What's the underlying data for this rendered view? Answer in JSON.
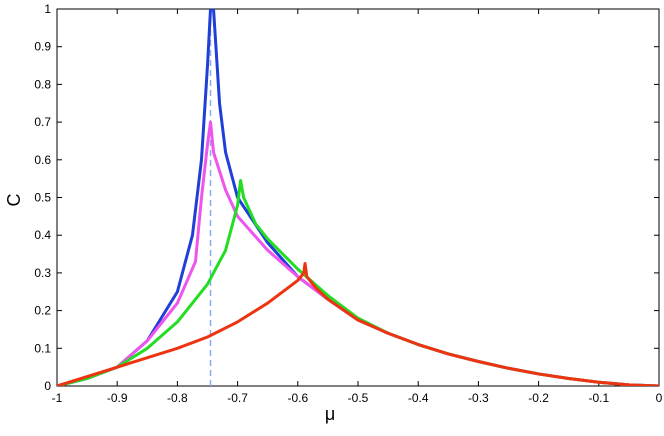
{
  "chart_data": {
    "type": "line",
    "xlabel": "μ",
    "ylabel": "C",
    "xlim": [
      -1,
      0
    ],
    "ylim": [
      0,
      1
    ],
    "xticks": [
      -1,
      -0.9,
      -0.8,
      -0.7,
      -0.6,
      -0.5,
      -0.4,
      -0.3,
      -0.2,
      -0.1,
      0
    ],
    "yticks": [
      0,
      0.1,
      0.2,
      0.3,
      0.4,
      0.5,
      0.6,
      0.7,
      0.8,
      0.9,
      1
    ],
    "series": [
      {
        "color": "#1f3fd8",
        "x": [
          -1,
          -0.95,
          -0.9,
          -0.85,
          -0.8,
          -0.775,
          -0.76,
          -0.75,
          -0.745,
          -0.74,
          -0.73,
          -0.72,
          -0.7,
          -0.65,
          -0.6,
          -0.55,
          -0.5,
          -0.45,
          -0.4,
          -0.35,
          -0.3,
          -0.25,
          -0.2,
          -0.15,
          -0.1,
          -0.05,
          0
        ],
        "values": [
          0,
          0.02,
          0.05,
          0.12,
          0.25,
          0.4,
          0.6,
          0.85,
          1,
          1,
          0.75,
          0.62,
          0.5,
          0.38,
          0.29,
          0.23,
          0.175,
          0.14,
          0.11,
          0.085,
          0.065,
          0.047,
          0.032,
          0.02,
          0.01,
          0.003,
          0
        ]
      },
      {
        "color": "#ee55ee",
        "x": [
          -1,
          -0.95,
          -0.9,
          -0.85,
          -0.8,
          -0.77,
          -0.76,
          -0.75,
          -0.745,
          -0.74,
          -0.72,
          -0.7,
          -0.65,
          -0.6,
          -0.55,
          -0.5,
          -0.45,
          -0.4,
          -0.35,
          -0.3,
          -0.25,
          -0.2,
          -0.15,
          -0.1,
          -0.05,
          0
        ],
        "values": [
          0,
          0.02,
          0.05,
          0.12,
          0.22,
          0.33,
          0.5,
          0.64,
          0.7,
          0.62,
          0.52,
          0.45,
          0.36,
          0.29,
          0.23,
          0.175,
          0.14,
          0.11,
          0.085,
          0.065,
          0.047,
          0.032,
          0.02,
          0.01,
          0.003,
          0
        ]
      },
      {
        "color": "#22dd22",
        "x": [
          -1,
          -0.95,
          -0.9,
          -0.85,
          -0.8,
          -0.75,
          -0.72,
          -0.7,
          -0.695,
          -0.69,
          -0.67,
          -0.65,
          -0.6,
          -0.55,
          -0.5,
          -0.45,
          -0.4,
          -0.35,
          -0.3,
          -0.25,
          -0.2,
          -0.15,
          -0.1,
          -0.05,
          0
        ],
        "values": [
          0,
          0.02,
          0.05,
          0.1,
          0.17,
          0.27,
          0.36,
          0.48,
          0.545,
          0.5,
          0.43,
          0.39,
          0.31,
          0.24,
          0.18,
          0.14,
          0.11,
          0.085,
          0.065,
          0.047,
          0.032,
          0.02,
          0.01,
          0.003,
          0
        ]
      },
      {
        "color": "#ee3311",
        "x": [
          -1,
          -0.9,
          -0.8,
          -0.75,
          -0.7,
          -0.65,
          -0.6,
          -0.59,
          -0.588,
          -0.585,
          -0.57,
          -0.55,
          -0.5,
          -0.45,
          -0.4,
          -0.35,
          -0.3,
          -0.25,
          -0.2,
          -0.15,
          -0.1,
          -0.05,
          0
        ],
        "values": [
          0,
          0.05,
          0.1,
          0.13,
          0.17,
          0.22,
          0.28,
          0.3,
          0.325,
          0.29,
          0.26,
          0.23,
          0.175,
          0.14,
          0.11,
          0.085,
          0.065,
          0.047,
          0.032,
          0.02,
          0.01,
          0.003,
          0
        ]
      }
    ],
    "vline": {
      "x": -0.745,
      "color": "#88aaee"
    }
  }
}
